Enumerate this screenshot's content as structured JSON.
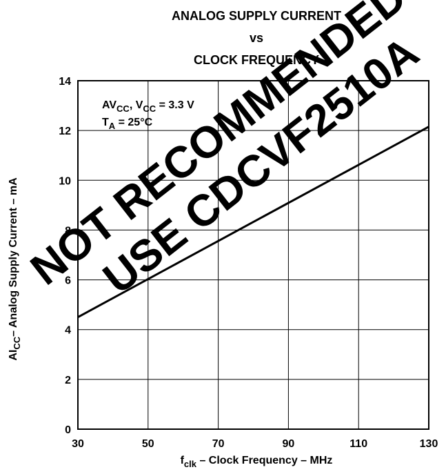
{
  "chart_data": {
    "type": "line",
    "title_lines": [
      "ANALOG SUPPLY CURRENT",
      "vs",
      "CLOCK FREQUENCY"
    ],
    "xlabel": {
      "main": "f",
      "sub": "clk",
      "rest": " – Clock Frequency – MHz"
    },
    "ylabel": {
      "main": "AI",
      "sub": "CC",
      "rest": "– Analog Supply Current – mA"
    },
    "xlim": [
      30,
      130
    ],
    "ylim": [
      0,
      14
    ],
    "x_ticks": [
      30,
      50,
      70,
      90,
      110,
      130
    ],
    "y_ticks": [
      0,
      2,
      4,
      6,
      8,
      10,
      12,
      14
    ],
    "grid": true,
    "series": [
      {
        "x": [
          30,
          130
        ],
        "y": [
          4.5,
          12.15
        ]
      }
    ],
    "annotation": {
      "line1": {
        "a": "AV",
        "a_sub": "CC",
        "b": ", V",
        "b_sub": "CC",
        "c": " = 3.3 V"
      },
      "line2": {
        "a": "T",
        "a_sub": "A",
        "c": " = 25°C"
      }
    }
  },
  "watermark": [
    "NOT RECOMMENDED FOR NEW DESIGNS",
    "USE CDCVF2510A"
  ]
}
